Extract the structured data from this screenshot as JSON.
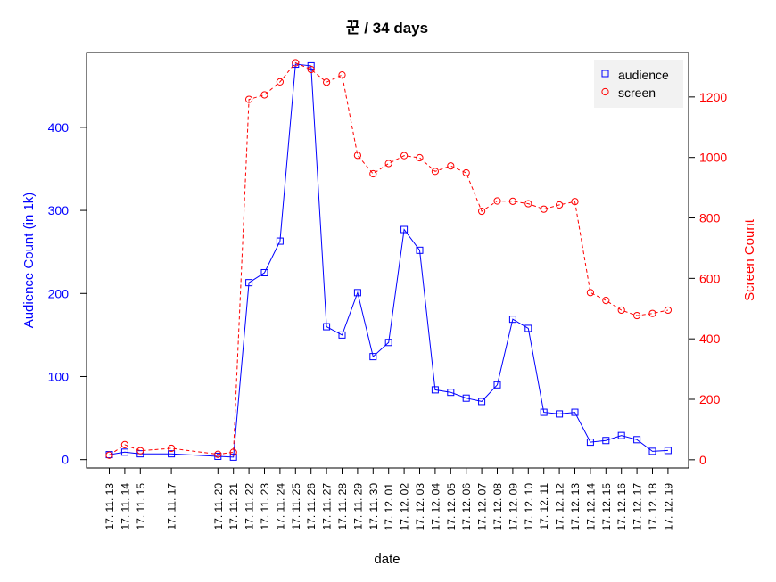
{
  "chart_data": {
    "type": "line",
    "title": "꾼 / 34 days",
    "xlabel": "date",
    "ylabel_left": "Audience Count (in 1k)",
    "ylabel_right": "Screen Count",
    "x": [
      "17. 11. 13",
      "17. 11. 14",
      "17. 11. 15",
      "17. 11. 17",
      "17. 11. 20",
      "17. 11. 21",
      "17. 11. 22",
      "17. 11. 23",
      "17. 11. 24",
      "17. 11. 25",
      "17. 11. 26",
      "17. 11. 27",
      "17. 11. 28",
      "17. 11. 29",
      "17. 11. 30",
      "17. 12. 01",
      "17. 12. 02",
      "17. 12. 03",
      "17. 12. 04",
      "17. 12. 05",
      "17. 12. 06",
      "17. 12. 07",
      "17. 12. 08",
      "17. 12. 09",
      "17. 12. 10",
      "17. 12. 11",
      "17. 12. 12",
      "17. 12. 13",
      "17. 12. 14",
      "17. 12. 15",
      "17. 12. 16",
      "17. 12. 17",
      "17. 12. 18",
      "17. 12. 19"
    ],
    "x_day_index": [
      0,
      1,
      2,
      4,
      7,
      8,
      9,
      10,
      11,
      12,
      13,
      14,
      15,
      16,
      17,
      18,
      19,
      20,
      21,
      22,
      23,
      24,
      25,
      26,
      27,
      28,
      29,
      30,
      31,
      32,
      33,
      34,
      35,
      36
    ],
    "series": [
      {
        "name": "audience",
        "axis": "left",
        "color": "#0000ff",
        "marker": "square",
        "line": "solid",
        "values": [
          6,
          9,
          7,
          7,
          4,
          3,
          213,
          225,
          263,
          476,
          474,
          160,
          150,
          201,
          124,
          141,
          277,
          252,
          84,
          81,
          74,
          70,
          90,
          169,
          158,
          57,
          55,
          57,
          21,
          23,
          29,
          24,
          10,
          11
        ]
      },
      {
        "name": "screen",
        "axis": "right",
        "color": "#ff0000",
        "marker": "circle",
        "line": "dashed",
        "values": [
          15,
          50,
          30,
          38,
          18,
          25,
          1192,
          1207,
          1250,
          1313,
          1291,
          1249,
          1273,
          1007,
          946,
          980,
          1006,
          999,
          954,
          972,
          949,
          822,
          856,
          855,
          847,
          829,
          843,
          854,
          553,
          527,
          495,
          477,
          484,
          495
        ]
      }
    ],
    "y_left": {
      "ticks": [
        0,
        100,
        200,
        300,
        400
      ],
      "range": [
        -10,
        490
      ],
      "color": "#0000ff"
    },
    "y_right": {
      "ticks": [
        0,
        200,
        400,
        600,
        800,
        1000,
        1200
      ],
      "range": [
        -27,
        1347
      ],
      "color": "#ff0000"
    },
    "legend": {
      "position": "top-right",
      "entries": [
        "audience",
        "screen"
      ]
    },
    "grid": false
  }
}
